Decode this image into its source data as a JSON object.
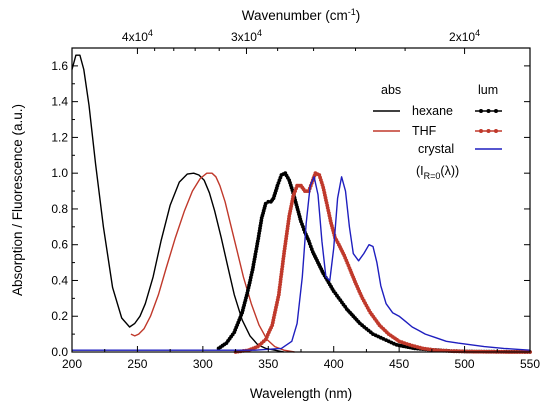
{
  "chart_data": {
    "type": "line",
    "xlabel": "Wavelength (nm)",
    "ylabel": "Absorption / Fluorescence (a.u.)",
    "top_axis": {
      "label": "Wavenumber (cm⁻¹)",
      "ticks": [
        {
          "wavenumber": 40000,
          "label": "4x10⁴"
        },
        {
          "wavenumber": 30000,
          "label": "3x10⁴"
        },
        {
          "wavenumber": 20000,
          "label": "2x10⁴"
        }
      ]
    },
    "xlim": [
      200,
      550
    ],
    "ylim": [
      0,
      1.7
    ],
    "x_ticks": [
      200,
      250,
      300,
      350,
      400,
      450,
      500,
      550
    ],
    "y_ticks": [
      0.0,
      0.2,
      0.4,
      0.6,
      0.8,
      1.0,
      1.2,
      1.4,
      1.6
    ],
    "legend": {
      "position": "top-right",
      "header_abs": "abs",
      "header_lum": "lum",
      "entries": [
        {
          "label": "hexane",
          "abs": true,
          "lum": true,
          "color": "#000000"
        },
        {
          "label": "THF",
          "abs": true,
          "lum": true,
          "color": "#c0392b"
        },
        {
          "label": "crystal",
          "abs": false,
          "lum": true,
          "color": "#1f1fbf"
        }
      ],
      "note": "(I",
      "note_sub": "R=0",
      "note_tail": "(λ))"
    },
    "series": [
      {
        "name": "hexane",
        "kind": "abs",
        "color": "#000000",
        "markers": false,
        "x": [
          200,
          203,
          206,
          209,
          213,
          218,
          224,
          231,
          238,
          244,
          248,
          252,
          256,
          262,
          268,
          275,
          282,
          288,
          293,
          297,
          301,
          305,
          309,
          314,
          319,
          324,
          330,
          336,
          342,
          348,
          355,
          362
        ],
        "y": [
          1.58,
          1.66,
          1.66,
          1.58,
          1.38,
          1.05,
          0.7,
          0.36,
          0.19,
          0.14,
          0.16,
          0.2,
          0.27,
          0.42,
          0.62,
          0.82,
          0.95,
          0.995,
          1.0,
          0.99,
          0.96,
          0.89,
          0.79,
          0.64,
          0.48,
          0.32,
          0.18,
          0.09,
          0.04,
          0.02,
          0.01,
          0.0
        ]
      },
      {
        "name": "THF",
        "kind": "abs",
        "color": "#c0392b",
        "markers": false,
        "x": [
          245,
          248,
          251,
          255,
          260,
          266,
          272,
          279,
          286,
          292,
          298,
          303,
          307,
          310,
          313,
          317,
          321,
          326,
          331,
          337,
          343,
          349,
          355,
          362,
          370
        ],
        "y": [
          0.1,
          0.09,
          0.1,
          0.13,
          0.2,
          0.32,
          0.47,
          0.64,
          0.79,
          0.9,
          0.97,
          1.0,
          1.0,
          0.98,
          0.93,
          0.84,
          0.72,
          0.57,
          0.42,
          0.27,
          0.15,
          0.07,
          0.03,
          0.01,
          0.0
        ]
      },
      {
        "name": "hexane",
        "kind": "lum",
        "color": "#000000",
        "markers": true,
        "x": [
          312,
          318,
          324,
          330,
          334,
          338,
          342,
          345,
          348,
          350,
          352,
          354,
          357,
          360,
          363,
          366,
          369,
          372,
          375,
          378,
          381,
          384,
          388,
          392,
          396,
          400,
          405,
          410,
          415,
          420,
          425,
          430,
          436,
          442,
          448,
          455,
          462,
          470,
          480,
          490,
          500,
          515,
          530,
          550
        ],
        "y": [
          0.02,
          0.05,
          0.11,
          0.22,
          0.33,
          0.46,
          0.62,
          0.75,
          0.83,
          0.84,
          0.84,
          0.86,
          0.93,
          0.99,
          1.0,
          0.96,
          0.89,
          0.81,
          0.73,
          0.67,
          0.62,
          0.56,
          0.5,
          0.44,
          0.39,
          0.34,
          0.29,
          0.24,
          0.2,
          0.16,
          0.13,
          0.1,
          0.08,
          0.06,
          0.04,
          0.03,
          0.02,
          0.015,
          0.01,
          0.005,
          0.003,
          0.002,
          0.001,
          0.0
        ]
      },
      {
        "name": "THF",
        "kind": "lum",
        "color": "#c0392b",
        "markers": true,
        "x": [
          325,
          335,
          342,
          348,
          353,
          358,
          362,
          366,
          369,
          372,
          375,
          378,
          381,
          384,
          386,
          389,
          392,
          395,
          398,
          401,
          404,
          408,
          412,
          417,
          422,
          428,
          435,
          442,
          450,
          458,
          468,
          478,
          490,
          505,
          520,
          535,
          550
        ],
        "y": [
          0.0,
          0.01,
          0.03,
          0.07,
          0.15,
          0.32,
          0.55,
          0.76,
          0.87,
          0.93,
          0.93,
          0.9,
          0.9,
          0.96,
          1.0,
          0.99,
          0.92,
          0.82,
          0.72,
          0.64,
          0.6,
          0.54,
          0.47,
          0.38,
          0.3,
          0.22,
          0.15,
          0.1,
          0.06,
          0.04,
          0.02,
          0.01,
          0.005,
          0.002,
          0.001,
          0.0,
          0.0
        ]
      },
      {
        "name": "crystal",
        "kind": "lum",
        "color": "#1f1fbf",
        "markers": false,
        "x": [
          200,
          340,
          360,
          368,
          372,
          376,
          379,
          382,
          385,
          388,
          391,
          394,
          397,
          400,
          403,
          406,
          409,
          412,
          415,
          419,
          423,
          427,
          430,
          433,
          436,
          440,
          445,
          450,
          455,
          460,
          465,
          470,
          478,
          486,
          495,
          505,
          515,
          530,
          550
        ],
        "y": [
          0.01,
          0.01,
          0.02,
          0.06,
          0.16,
          0.42,
          0.72,
          0.93,
          0.98,
          0.88,
          0.62,
          0.42,
          0.4,
          0.58,
          0.86,
          0.98,
          0.9,
          0.7,
          0.55,
          0.51,
          0.55,
          0.6,
          0.59,
          0.5,
          0.37,
          0.27,
          0.22,
          0.2,
          0.17,
          0.14,
          0.12,
          0.1,
          0.08,
          0.06,
          0.05,
          0.04,
          0.03,
          0.02,
          0.01
        ]
      }
    ]
  }
}
